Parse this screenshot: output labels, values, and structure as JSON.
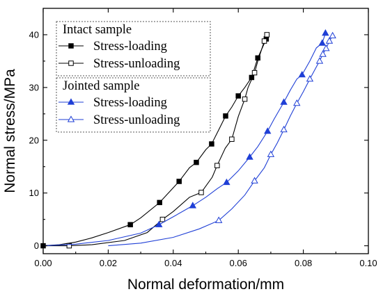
{
  "chart_data": {
    "type": "line",
    "xlabel": "Normal deformation/mm",
    "ylabel": "Normal stress/MPa",
    "xlim": [
      0,
      0.1
    ],
    "ylim": [
      -1.5,
      45
    ],
    "xticks": [
      0.0,
      0.02,
      0.04,
      0.06,
      0.08,
      0.1
    ],
    "xtick_labels": [
      "0.00",
      "0.02",
      "0.04",
      "0.06",
      "0.08",
      "0.10"
    ],
    "yticks": [
      0,
      10,
      20,
      30,
      40
    ],
    "ytick_labels": [
      "0",
      "10",
      "20",
      "30",
      "40"
    ],
    "grid": false,
    "legend_groups": [
      {
        "title": "Intact sample",
        "entries": [
          {
            "label": "Stress-loading",
            "series_index": 0
          },
          {
            "label": "Stress-unloading",
            "series_index": 1
          }
        ]
      },
      {
        "title": "Jointed sample",
        "entries": [
          {
            "label": "Stress-loading",
            "series_index": 2
          },
          {
            "label": "Stress-unloading",
            "series_index": 3
          }
        ]
      }
    ],
    "series": [
      {
        "color": "#000000",
        "marker": "square-filled",
        "x": [
          0.0,
          0.005,
          0.01,
          0.015,
          0.02,
          0.0268,
          0.03,
          0.0358,
          0.04,
          0.0418,
          0.045,
          0.0471,
          0.05,
          0.0518,
          0.054,
          0.0561,
          0.058,
          0.06,
          0.062,
          0.0641,
          0.066,
          0.0686
        ],
        "y": [
          0.0,
          0.2,
          0.7,
          1.5,
          2.5,
          4.0,
          5.3,
          8.2,
          11.0,
          12.2,
          14.8,
          15.8,
          18.2,
          19.3,
          22.0,
          24.6,
          26.3,
          28.4,
          30.0,
          31.9,
          35.6,
          39.2
        ],
        "marker_indices": [
          0,
          5,
          7,
          9,
          11,
          13,
          15,
          17,
          19,
          20,
          21
        ]
      },
      {
        "color": "#000000",
        "marker": "square-open",
        "x": [
          0.0,
          0.008,
          0.015,
          0.025,
          0.032,
          0.0367,
          0.04,
          0.045,
          0.0486,
          0.052,
          0.0535,
          0.056,
          0.058,
          0.06,
          0.062,
          0.063,
          0.065,
          0.066,
          0.068,
          0.0688
        ],
        "y": [
          0.0,
          0.0,
          0.2,
          1.0,
          2.5,
          5.0,
          6.5,
          9.2,
          10.1,
          13.0,
          15.2,
          18.5,
          20.2,
          24.5,
          27.8,
          30.0,
          32.8,
          35.0,
          38.8,
          40.0
        ],
        "marker_indices": [
          1,
          5,
          8,
          10,
          12,
          14,
          16,
          18,
          19
        ]
      },
      {
        "color": "#1f3fd6",
        "marker": "triangle-filled",
        "x": [
          0.0,
          0.01,
          0.02,
          0.03,
          0.0356,
          0.04,
          0.046,
          0.05,
          0.0535,
          0.0564,
          0.06,
          0.0635,
          0.066,
          0.069,
          0.071,
          0.074,
          0.076,
          0.078,
          0.0796,
          0.082,
          0.084,
          0.0858,
          0.0868
        ],
        "y": [
          0.0,
          0.3,
          1.0,
          2.4,
          4.0,
          5.5,
          7.6,
          9.2,
          10.8,
          12.0,
          14.2,
          16.8,
          18.8,
          21.7,
          24.0,
          27.2,
          29.5,
          31.6,
          32.4,
          35.0,
          37.5,
          38.4,
          40.3
        ],
        "marker_indices": [
          4,
          6,
          9,
          11,
          13,
          15,
          18,
          21,
          22
        ]
      },
      {
        "color": "#1f3fd6",
        "marker": "triangle-open",
        "x": [
          0.02,
          0.03,
          0.04,
          0.048,
          0.054,
          0.058,
          0.062,
          0.065,
          0.068,
          0.07,
          0.072,
          0.074,
          0.076,
          0.078,
          0.08,
          0.082,
          0.084,
          0.085,
          0.086,
          0.087,
          0.088,
          0.089
        ],
        "y": [
          0.0,
          0.5,
          1.6,
          3.2,
          4.8,
          7.0,
          9.6,
          12.3,
          14.8,
          17.3,
          19.5,
          22.0,
          24.6,
          27.0,
          29.2,
          31.6,
          33.9,
          35.0,
          36.3,
          37.4,
          38.8,
          39.8
        ],
        "marker_indices": [
          4,
          7,
          9,
          11,
          13,
          15,
          17,
          18,
          19,
          20,
          21
        ]
      }
    ]
  }
}
